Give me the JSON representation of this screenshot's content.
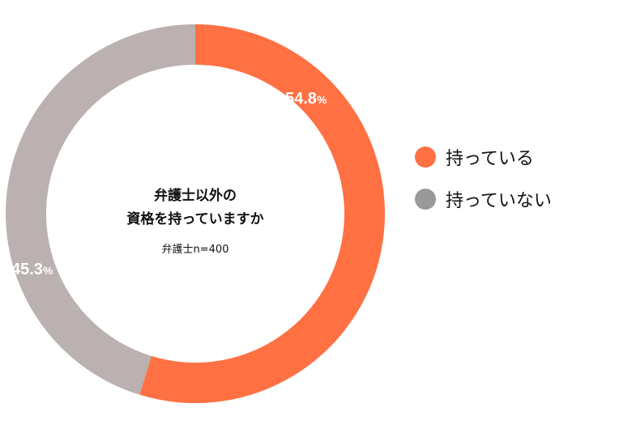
{
  "chart_data": {
    "type": "pie",
    "variant": "donut",
    "center_title_lines": [
      "弁護士以外の",
      "資格を持っていますか"
    ],
    "center_note": "弁護士n=400",
    "slices": [
      {
        "name": "持っている",
        "value": 54.8,
        "label_number": "54.8",
        "label_unit": "%",
        "color": "#FF7043"
      },
      {
        "name": "持っていない",
        "value": 45.3,
        "label_number": "45.3",
        "label_unit": "%",
        "color": "#BCB1B1"
      }
    ],
    "legend": {
      "placement": "right",
      "items": [
        {
          "label": "持っている",
          "color": "#FF7043"
        },
        {
          "label": "持っていない",
          "color": "#999999"
        }
      ]
    }
  }
}
